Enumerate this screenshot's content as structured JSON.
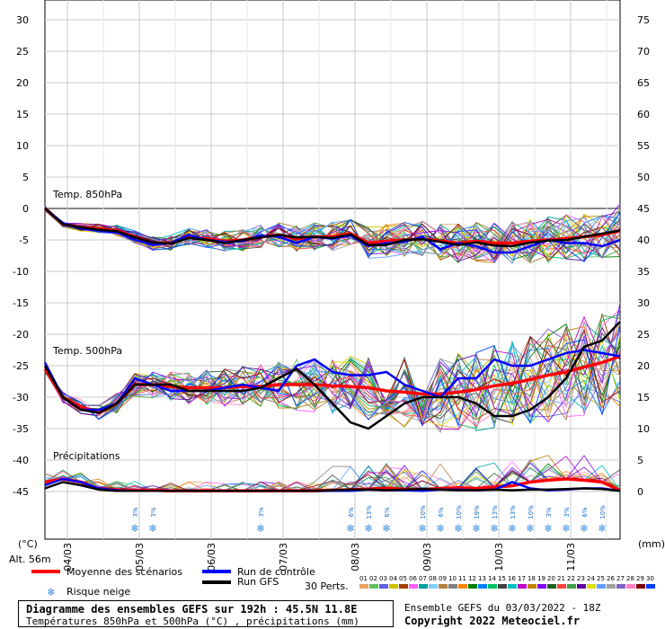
{
  "chart_data": {
    "type": "line",
    "title": "Diagramme des ensembles GEFS sur 192h : 45.5N 11.8E",
    "subtitle": "Températures 850hPa et 500hPa (°C) , précipitations (mm)",
    "left_axis": {
      "unit": "(°C)",
      "ticks": [
        "30",
        "25",
        "20",
        "15",
        "10",
        "5",
        "0",
        "-5",
        "-10",
        "-15",
        "-20",
        "-25",
        "-30",
        "-35",
        "-40",
        "-45"
      ],
      "range": [
        -45,
        30
      ]
    },
    "right_axis": {
      "unit": "(mm)",
      "ticks": [
        "75",
        "70",
        "65",
        "60",
        "55",
        "50",
        "45",
        "40",
        "35",
        "30",
        "25",
        "20",
        "15",
        "10",
        "5",
        "0"
      ],
      "range": [
        0,
        75
      ]
    },
    "altitude": "Alt. 56m",
    "x_dates": [
      "04/03",
      "05/03",
      "06/03",
      "07/03",
      "08/03",
      "09/03",
      "10/03",
      "11/03"
    ],
    "panels": [
      {
        "label": "Temp. 850hPa"
      },
      {
        "label": "Temp. 500hPa"
      },
      {
        "label": "Précipitations"
      }
    ],
    "snow_risk": [
      {
        "slot": 5,
        "pct": "3%"
      },
      {
        "slot": 6,
        "pct": "3%"
      },
      {
        "slot": 12,
        "pct": "3%"
      },
      {
        "slot": 17,
        "pct": "6%"
      },
      {
        "slot": 18,
        "pct": "13%"
      },
      {
        "slot": 19,
        "pct": "6%"
      },
      {
        "slot": 21,
        "pct": "10%"
      },
      {
        "slot": 22,
        "pct": "6%"
      },
      {
        "slot": 23,
        "pct": "10%"
      },
      {
        "slot": 24,
        "pct": "19%"
      },
      {
        "slot": 25,
        "pct": "13%"
      },
      {
        "slot": 26,
        "pct": "13%"
      },
      {
        "slot": 27,
        "pct": "10%"
      },
      {
        "slot": 28,
        "pct": "3%"
      },
      {
        "slot": 29,
        "pct": "3%"
      },
      {
        "slot": 30,
        "pct": "6%"
      },
      {
        "slot": 31,
        "pct": "10%"
      }
    ],
    "series": [
      {
        "name": "Moyenne des scénarios",
        "color": "#ff0000",
        "t850": [
          0,
          -2.5,
          -3,
          -3.2,
          -3.5,
          -4.5,
          -5.5,
          -5.5,
          -4.5,
          -4.8,
          -5.2,
          -5,
          -4.5,
          -4.2,
          -4.8,
          -4.5,
          -4.5,
          -4,
          -5.5,
          -5.2,
          -5,
          -4.8,
          -5.2,
          -5.5,
          -5.2,
          -5.5,
          -5.5,
          -5.2,
          -5,
          -4.8,
          -4.5,
          -4.2,
          -3.5
        ],
        "t500": [
          -25.5,
          -30,
          -31.5,
          -32.5,
          -31,
          -28,
          -28,
          -28.3,
          -28.5,
          -28.5,
          -28.5,
          -28.3,
          -28.3,
          -28,
          -28,
          -28,
          -28.2,
          -28.3,
          -28.5,
          -29,
          -29.2,
          -29.5,
          -29.5,
          -29.2,
          -28.8,
          -28.2,
          -27.8,
          -27.2,
          -26.5,
          -26,
          -25.2,
          -24.5,
          -23.5
        ],
        "precip": [
          1.5,
          2,
          1.5,
          0.5,
          0.3,
          0.2,
          0.2,
          0.1,
          0.1,
          0.1,
          0.1,
          0.1,
          0.1,
          0.1,
          0.1,
          0.1,
          0.2,
          0.3,
          0.4,
          0.5,
          0.4,
          0.3,
          0.5,
          0.6,
          0.5,
          0.7,
          0.9,
          1.5,
          1.8,
          2,
          1.8,
          1.5,
          0.2
        ]
      },
      {
        "name": "Run de contrôle",
        "color": "#0000ff",
        "t850": [
          0,
          -2.3,
          -3.2,
          -3.5,
          -3.8,
          -5,
          -5.8,
          -5.5,
          -4.2,
          -5,
          -5.3,
          -5.2,
          -4.3,
          -4.5,
          -5.5,
          -4.5,
          -4.8,
          -4.3,
          -6,
          -5.5,
          -5.3,
          -4.5,
          -6.5,
          -5.5,
          -6,
          -7,
          -7,
          -6,
          -5,
          -5.5,
          -5.5,
          -6,
          -5
        ],
        "t500": [
          -24.5,
          -30,
          -32,
          -32,
          -31,
          -27,
          -28,
          -29,
          -29,
          -29,
          -28.5,
          -28,
          -28.5,
          -29,
          -25,
          -24,
          -26,
          -26.5,
          -26.5,
          -26,
          -28,
          -29,
          -30,
          -27,
          -27,
          -24,
          -25,
          -25,
          -24,
          -23,
          -22.5,
          -23,
          -23.5
        ],
        "precip": [
          1,
          2,
          1.5,
          0.5,
          0.2,
          0.1,
          0.1,
          0.1,
          0.1,
          0.1,
          0.1,
          0.1,
          0.1,
          0.1,
          0.1,
          0.1,
          0.1,
          0.1,
          0.3,
          0.2,
          0.2,
          0.1,
          0.3,
          0.3,
          0.2,
          0.3,
          1.5,
          0.5,
          0.2,
          0.3,
          0.5,
          0.5,
          0.1
        ]
      },
      {
        "name": "Run GFS",
        "color": "#000000",
        "t850": [
          0,
          -2.5,
          -3,
          -3.4,
          -3.6,
          -4.6,
          -5.4,
          -5.6,
          -4.7,
          -5,
          -5.5,
          -5,
          -4.6,
          -4.2,
          -4.6,
          -4.5,
          -4.7,
          -4.1,
          -5.8,
          -5.8,
          -5,
          -4.9,
          -5.3,
          -5.8,
          -5.4,
          -5.9,
          -6,
          -5.4,
          -5.1,
          -5,
          -4.5,
          -4,
          -3.5
        ],
        "t500": [
          -25,
          -30,
          -32,
          -32.5,
          -31,
          -28,
          -28,
          -28,
          -29,
          -29,
          -29,
          -29,
          -28.5,
          -27,
          -25.5,
          -28,
          -31,
          -34,
          -35,
          -33,
          -31,
          -30,
          -30,
          -30,
          -31,
          -33,
          -33,
          -32,
          -30,
          -27,
          -22,
          -21,
          -18
        ],
        "precip": [
          0.5,
          1.5,
          1,
          0.3,
          0.1,
          0.1,
          0.1,
          0.1,
          0.1,
          0.1,
          0.1,
          0.1,
          0.1,
          0.1,
          0.1,
          0.1,
          0.2,
          0.3,
          0.3,
          0.2,
          0.3,
          0.4,
          0.3,
          0.2,
          0.2,
          0.3,
          0.2,
          0.3,
          0.3,
          0.4,
          0.5,
          0.4,
          0.1
        ]
      }
    ],
    "perturbations": {
      "count_label": "30 Perts.",
      "labels": [
        "01",
        "02",
        "03",
        "04",
        "05",
        "06",
        "07",
        "08",
        "09",
        "10",
        "11",
        "12",
        "13",
        "14",
        "15",
        "16",
        "17",
        "18",
        "19",
        "20",
        "21",
        "22",
        "23",
        "24",
        "25",
        "26",
        "27",
        "28",
        "29",
        "30"
      ],
      "colors": [
        "#e8a060",
        "#60c060",
        "#6060e0",
        "#d0c000",
        "#a04000",
        "#ff60ff",
        "#00a0a0",
        "#80d0ff",
        "#b08040",
        "#808080",
        "#ff8000",
        "#008000",
        "#0080ff",
        "#00c060",
        "#404040",
        "#00c0c0",
        "#c000c0",
        "#c08000",
        "#8000ff",
        "#206020",
        "#ff4040",
        "#40a040",
        "#6000a0",
        "#e0e000",
        "#60a0ff",
        "#a0a0a0",
        "#8060c0",
        "#ff80c0",
        "#800000",
        "#0040ff"
      ]
    },
    "legend_snow": "Risque neige"
  },
  "footer": {
    "box_title": "Diagramme des ensembles GEFS sur 192h : 45.5N 11.8E",
    "box_subtitle": "Températures 850hPa et 500hPa (°C) , précipitations (mm)",
    "run_info": "Ensemble GEFS du 03/03/2022 - 18Z",
    "copyright": "Copyright 2022 Meteociel.fr"
  }
}
